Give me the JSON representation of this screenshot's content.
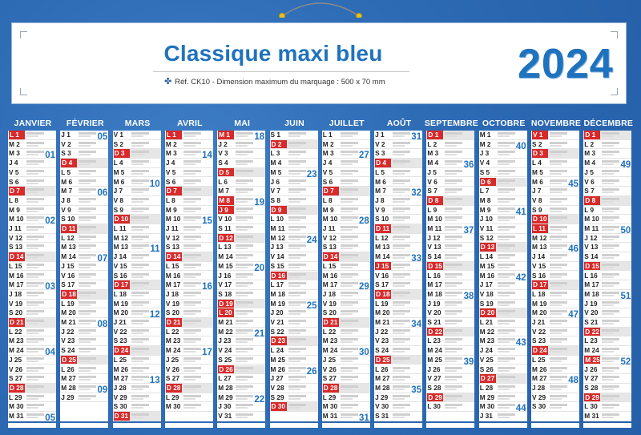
{
  "header": {
    "title": "Classique maxi bleu",
    "reference": "Réf. CK10 - Dimension maximum du marquage : 500 x 70 mm",
    "year": "2024"
  },
  "months": [
    {
      "name": "JANVIER",
      "first": "L",
      "days": 31,
      "sundays": [
        7,
        14,
        21,
        28
      ],
      "holidays": [
        1
      ],
      "weeks": [
        {
          "n": "01",
          "day": 3
        },
        {
          "n": "02",
          "day": 10
        },
        {
          "n": "03",
          "day": 17
        },
        {
          "n": "04",
          "day": 24
        },
        {
          "n": "05",
          "day": 31
        }
      ]
    },
    {
      "name": "FÉVRIER",
      "first": "J",
      "days": 29,
      "sundays": [
        4,
        11,
        18,
        25
      ],
      "holidays": [],
      "weeks": [
        {
          "n": "05",
          "day": 1
        },
        {
          "n": "06",
          "day": 7
        },
        {
          "n": "07",
          "day": 14
        },
        {
          "n": "08",
          "day": 21
        },
        {
          "n": "09",
          "day": 28
        }
      ]
    },
    {
      "name": "MARS",
      "first": "V",
      "days": 31,
      "sundays": [
        3,
        10,
        17,
        24,
        31
      ],
      "holidays": [],
      "weeks": [
        {
          "n": "10",
          "day": 6
        },
        {
          "n": "11",
          "day": 13
        },
        {
          "n": "12",
          "day": 20
        },
        {
          "n": "13",
          "day": 27
        }
      ]
    },
    {
      "name": "AVRIL",
      "first": "L",
      "days": 30,
      "sundays": [
        7,
        14,
        21,
        28
      ],
      "holidays": [
        1
      ],
      "weeks": [
        {
          "n": "14",
          "day": 3
        },
        {
          "n": "15",
          "day": 10
        },
        {
          "n": "16",
          "day": 17
        },
        {
          "n": "17",
          "day": 24
        }
      ]
    },
    {
      "name": "MAI",
      "first": "M",
      "days": 31,
      "sundays": [
        5,
        12,
        19,
        26
      ],
      "holidays": [
        1,
        8,
        9,
        20
      ],
      "weeks": [
        {
          "n": "18",
          "day": 1
        },
        {
          "n": "19",
          "day": 8
        },
        {
          "n": "20",
          "day": 15
        },
        {
          "n": "21",
          "day": 22
        },
        {
          "n": "22",
          "day": 29
        }
      ]
    },
    {
      "name": "JUIN",
      "first": "S",
      "days": 30,
      "sundays": [
        2,
        9,
        16,
        23,
        30
      ],
      "holidays": [],
      "weeks": [
        {
          "n": "23",
          "day": 5
        },
        {
          "n": "24",
          "day": 12
        },
        {
          "n": "25",
          "day": 19
        },
        {
          "n": "26",
          "day": 26
        }
      ]
    },
    {
      "name": "JUILLET",
      "first": "L",
      "days": 31,
      "sundays": [
        7,
        14,
        21,
        28
      ],
      "holidays": [
        14
      ],
      "weeks": [
        {
          "n": "27",
          "day": 3
        },
        {
          "n": "28",
          "day": 10
        },
        {
          "n": "29",
          "day": 17
        },
        {
          "n": "30",
          "day": 24
        },
        {
          "n": "31",
          "day": 31
        }
      ]
    },
    {
      "name": "AOÛT",
      "first": "J",
      "days": 31,
      "sundays": [
        4,
        11,
        18,
        25
      ],
      "holidays": [
        15
      ],
      "weeks": [
        {
          "n": "31",
          "day": 1
        },
        {
          "n": "32",
          "day": 7
        },
        {
          "n": "33",
          "day": 14
        },
        {
          "n": "34",
          "day": 21
        },
        {
          "n": "35",
          "day": 28
        }
      ]
    },
    {
      "name": "SEPTEMBRE",
      "first": "D",
      "days": 30,
      "sundays": [
        1,
        8,
        15,
        22,
        29
      ],
      "holidays": [],
      "weeks": [
        {
          "n": "36",
          "day": 4
        },
        {
          "n": "37",
          "day": 11
        },
        {
          "n": "38",
          "day": 18
        },
        {
          "n": "39",
          "day": 25
        }
      ]
    },
    {
      "name": "OCTOBRE",
      "first": "M",
      "days": 31,
      "sundays": [
        6,
        13,
        20,
        27
      ],
      "holidays": [],
      "weeks": [
        {
          "n": "40",
          "day": 2
        },
        {
          "n": "41",
          "day": 9
        },
        {
          "n": "42",
          "day": 16
        },
        {
          "n": "43",
          "day": 23
        },
        {
          "n": "44",
          "day": 30
        }
      ]
    },
    {
      "name": "NOVEMBRE",
      "first": "V",
      "days": 30,
      "sundays": [
        3,
        10,
        17,
        24
      ],
      "holidays": [
        1,
        11
      ],
      "weeks": [
        {
          "n": "45",
          "day": 6
        },
        {
          "n": "46",
          "day": 13
        },
        {
          "n": "47",
          "day": 20
        },
        {
          "n": "48",
          "day": 27
        }
      ]
    },
    {
      "name": "DÉCEMBRE",
      "first": "D",
      "days": 31,
      "sundays": [
        1,
        8,
        15,
        22,
        29
      ],
      "holidays": [
        25
      ],
      "weeks": [
        {
          "n": "49",
          "day": 4
        },
        {
          "n": "50",
          "day": 11
        },
        {
          "n": "51",
          "day": 18
        },
        {
          "n": "52",
          "day": 25
        }
      ]
    }
  ],
  "colors": {
    "brand": "#1f72bd",
    "background": "#2e6cb6",
    "sunday": "#d82a2a"
  }
}
